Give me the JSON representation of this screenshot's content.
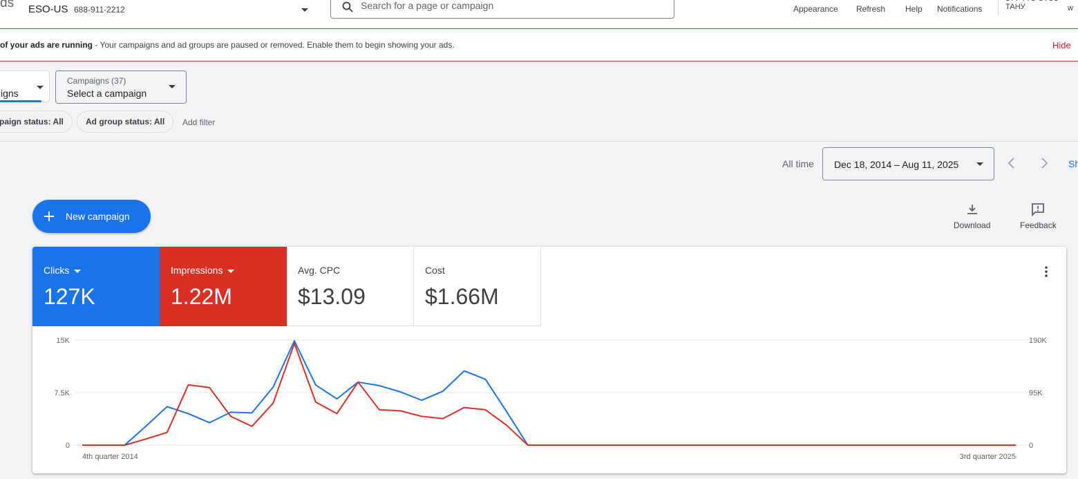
{
  "header": {
    "logo_fragment": "ds",
    "account_name": "ESO-US",
    "account_id": "688-911-2212",
    "search_placeholder": "Search for a page or campaign",
    "tools": [
      {
        "label": "Appearance",
        "icon": "appearance-icon"
      },
      {
        "label": "Refresh",
        "icon": "refresh-icon"
      },
      {
        "label": "Help",
        "icon": "help-icon"
      },
      {
        "label": "Notifications",
        "icon": "bell-icon"
      }
    ],
    "user_fragment_1": "ЗТТ ТТО ЭТОЗ ТАНУ",
    "user_fragment_2": "w"
  },
  "alert": {
    "bold_text": "of your ads are running",
    "text": " - Your campaigns and ad groups are paused or removed. Enable them to begin showing your ads.",
    "hide_label": "Hide"
  },
  "filters": {
    "view_dropdown_value": "igns",
    "campaign_dropdown_label": "Campaigns (37)",
    "campaign_dropdown_value": "Select a campaign",
    "chips": [
      "paign status: All",
      "Ad group status: All"
    ],
    "add_filter": "Add filter"
  },
  "date": {
    "preset": "All time",
    "range": "Dec 18, 2014 – Aug 11, 2025",
    "show_fragment": "Sh"
  },
  "actions": {
    "new_campaign": "New campaign",
    "download": "Download",
    "feedback": "Feedback"
  },
  "metrics": [
    {
      "label": "Clicks",
      "value": "127K",
      "color": "#1a73e8",
      "selected": true
    },
    {
      "label": "Impressions",
      "value": "1.22M",
      "color": "#d93025",
      "selected": true
    },
    {
      "label": "Avg. CPC",
      "value": "$13.09",
      "selected": false
    },
    {
      "label": "Cost",
      "value": "$1.66M",
      "selected": false
    }
  ],
  "chart_data": {
    "type": "line",
    "x_start_label": "4th quarter 2014",
    "x_end_label": "3rd quarter 2025",
    "left_axis": {
      "ticks": [
        "0",
        "7.5K",
        "15K"
      ],
      "min": 0,
      "max": 15000
    },
    "right_axis": {
      "ticks": [
        "0",
        "95K",
        "190K"
      ],
      "min": 0,
      "max": 190000
    },
    "grid": true,
    "series": [
      {
        "name": "Clicks",
        "color": "#1a73e8",
        "axis": "left",
        "values": [
          0,
          0,
          0,
          2700,
          5500,
          4500,
          3200,
          4700,
          4600,
          8300,
          14900,
          8600,
          6600,
          9000,
          8500,
          7600,
          6400,
          7700,
          10600,
          9400,
          4800,
          0,
          0,
          0,
          0,
          0,
          0,
          0,
          0,
          0,
          0,
          0,
          0,
          0,
          0,
          0,
          0,
          0,
          0,
          0,
          0,
          0,
          0,
          0,
          0
        ]
      },
      {
        "name": "Impressions",
        "color": "#d93025",
        "axis": "left_secondary",
        "values": [
          0,
          0,
          0,
          11000,
          23000,
          109000,
          104000,
          52000,
          34000,
          76000,
          184000,
          78000,
          57000,
          114000,
          64000,
          62000,
          52000,
          48000,
          68000,
          64000,
          36000,
          0,
          0,
          0,
          0,
          0,
          0,
          0,
          0,
          0,
          0,
          0,
          0,
          0,
          0,
          0,
          0,
          0,
          0,
          0,
          0,
          0,
          0,
          0,
          0
        ]
      }
    ]
  }
}
